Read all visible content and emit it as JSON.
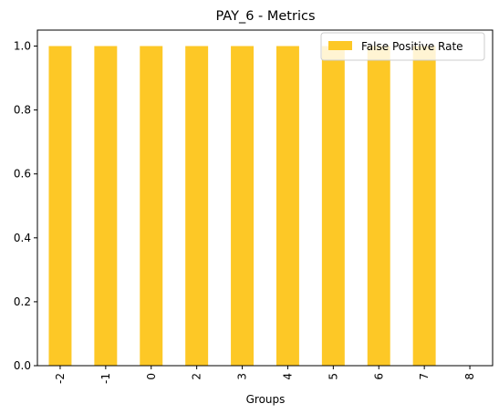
{
  "chart_data": {
    "type": "bar",
    "title": "PAY_6 - Metrics",
    "xlabel": "Groups",
    "ylabel": "",
    "categories": [
      "-2",
      "-1",
      "0",
      "2",
      "3",
      "4",
      "5",
      "6",
      "7",
      "8"
    ],
    "series": [
      {
        "name": "False Positive Rate",
        "color": "#fdc826",
        "values": [
          1.0,
          1.0,
          1.0,
          1.0,
          1.0,
          1.0,
          1.0,
          1.0,
          1.0,
          0.0
        ]
      }
    ],
    "ylim": [
      0,
      1.05
    ],
    "yticks": [
      "0.0",
      "0.2",
      "0.4",
      "0.6",
      "0.8",
      "1.0"
    ],
    "ytick_values": [
      0,
      0.2,
      0.4,
      0.6,
      0.8,
      1.0
    ],
    "grid": false,
    "legend_position": "top-right"
  }
}
